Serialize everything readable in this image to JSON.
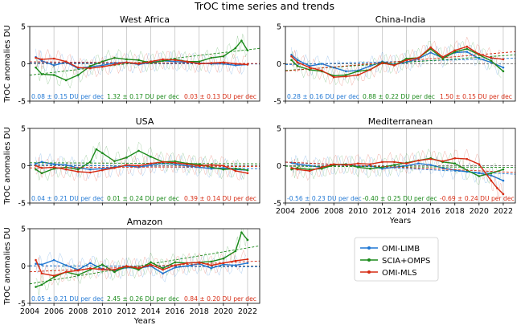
{
  "suptitle": "TrOC time series and trends",
  "ylabel": "TrOC anomalies DU",
  "xlabel": "Years",
  "colors": {
    "OMI-LIMB": "#1f77d4",
    "SCIA+OMPS": "#1a8a1a",
    "OMI-MLS": "#d62a12"
  },
  "legend": [
    "OMI-LIMB",
    "SCIA+OMPS",
    "OMI-MLS"
  ],
  "chart_data": [
    {
      "type": "line",
      "title": "West Africa",
      "xlim": [
        2004,
        2023
      ],
      "ylim": [
        -5,
        5
      ],
      "xticks": [
        "2004",
        "2006",
        "2008",
        "2010",
        "2012",
        "2014",
        "2016",
        "2018",
        "2020",
        "2022"
      ],
      "yticks": [
        "-5",
        "0",
        "5"
      ],
      "show_xticks": false,
      "trends": [
        {
          "series": "OMI-LIMB",
          "label": "0.08 ± 0.15 DU per dec"
        },
        {
          "series": "SCIA+OMPS",
          "label": "1.32 ± 0.17 DU per dec"
        },
        {
          "series": "OMI-MLS",
          "label": "0.03 ± 0.13 DU per dec"
        }
      ],
      "series": [
        {
          "name": "OMI-LIMB",
          "x": [
            2004.5,
            2005,
            2006,
            2007,
            2008,
            2009,
            2010,
            2011,
            2012,
            2013,
            2014,
            2015,
            2016,
            2017,
            2018,
            2019,
            2020,
            2021,
            2022
          ],
          "y": [
            0.9,
            0.4,
            -0.2,
            0.2,
            -0.6,
            -0.4,
            -0.2,
            0.1,
            0.2,
            -0.1,
            0.2,
            0.4,
            0.3,
            0.2,
            0.1,
            0.0,
            0.0,
            -0.2,
            -0.1
          ]
        },
        {
          "name": "SCIA+OMPS",
          "x": [
            2004.5,
            2005,
            2006,
            2007,
            2008,
            2009,
            2010,
            2011,
            2012,
            2013,
            2014,
            2015,
            2016,
            2017,
            2018,
            2019,
            2020,
            2021,
            2021.5,
            2022
          ],
          "y": [
            -0.5,
            -1.4,
            -1.5,
            -2.2,
            -1.5,
            -0.3,
            0.3,
            0.8,
            0.6,
            0.5,
            0.1,
            0.4,
            0.6,
            0.3,
            0.3,
            0.8,
            1.0,
            2.1,
            3.1,
            1.8
          ]
        },
        {
          "name": "OMI-MLS",
          "x": [
            2004.5,
            2005,
            2006,
            2007,
            2008,
            2009,
            2010,
            2011,
            2012,
            2013,
            2014,
            2015,
            2016,
            2017,
            2018,
            2019,
            2020,
            2021,
            2022
          ],
          "y": [
            0.8,
            0.6,
            0.7,
            0.3,
            -0.5,
            -0.6,
            -0.4,
            -0.1,
            0.2,
            0.0,
            0.3,
            0.6,
            0.5,
            0.3,
            0.0,
            0.1,
            0.2,
            0.0,
            -0.1
          ]
        }
      ]
    },
    {
      "type": "line",
      "title": "China-India",
      "xlim": [
        2004,
        2023
      ],
      "ylim": [
        -5,
        5
      ],
      "xticks": [
        "2004",
        "2006",
        "2008",
        "2010",
        "2012",
        "2014",
        "2016",
        "2018",
        "2020",
        "2022"
      ],
      "yticks": [
        "-5",
        "0",
        "5"
      ],
      "show_xticks": false,
      "trends": [
        {
          "series": "OMI-LIMB",
          "label": "0.28 ± 0.16 DU per dec"
        },
        {
          "series": "SCIA+OMPS",
          "label": "0.88 ± 0.22 DU per dec"
        },
        {
          "series": "OMI-MLS",
          "label": "1.50 ± 0.15 DU per dec"
        }
      ],
      "series": [
        {
          "name": "OMI-LIMB",
          "x": [
            2004.5,
            2005,
            2006,
            2007,
            2008,
            2009,
            2010,
            2011,
            2012,
            2013,
            2014,
            2015,
            2016,
            2017,
            2018,
            2019,
            2020,
            2021,
            2022
          ],
          "y": [
            1.2,
            0.5,
            -0.3,
            0.0,
            -0.5,
            -1.0,
            -0.9,
            -0.3,
            0.3,
            -0.1,
            0.2,
            0.7,
            1.5,
            0.8,
            1.5,
            1.6,
            0.7,
            0.2,
            -0.5
          ]
        },
        {
          "name": "SCIA+OMPS",
          "x": [
            2004.5,
            2005,
            2006,
            2007,
            2008,
            2009,
            2010,
            2011,
            2012,
            2013,
            2014,
            2015,
            2016,
            2017,
            2018,
            2019,
            2020,
            2021,
            2022
          ],
          "y": [
            0.5,
            -0.3,
            -0.8,
            -1.0,
            -1.6,
            -1.5,
            -1.0,
            -0.8,
            0.2,
            -0.2,
            0.7,
            0.8,
            2.0,
            0.7,
            1.6,
            2.0,
            1.2,
            0.4,
            -1.0
          ]
        },
        {
          "name": "OMI-MLS",
          "x": [
            2004.5,
            2005,
            2006,
            2007,
            2008,
            2009,
            2010,
            2011,
            2012,
            2013,
            2014,
            2015,
            2016,
            2017,
            2018,
            2019,
            2020,
            2021,
            2022
          ],
          "y": [
            1.0,
            0.2,
            -0.5,
            -0.9,
            -1.8,
            -1.7,
            -1.5,
            -0.8,
            0.1,
            -0.2,
            0.5,
            0.8,
            2.2,
            0.9,
            1.8,
            2.3,
            1.3,
            0.8,
            0.6
          ]
        }
      ]
    },
    {
      "type": "line",
      "title": "USA",
      "xlim": [
        2004,
        2023
      ],
      "ylim": [
        -5,
        5
      ],
      "xticks": [
        "2004",
        "2006",
        "2008",
        "2010",
        "2012",
        "2014",
        "2016",
        "2018",
        "2020",
        "2022"
      ],
      "yticks": [
        "-5",
        "0",
        "5"
      ],
      "show_xticks": false,
      "trends": [
        {
          "series": "OMI-LIMB",
          "label": "0.04 ± 0.21 DU per dec"
        },
        {
          "series": "SCIA+OMPS",
          "label": "0.01 ± 0.24 DU per dec"
        },
        {
          "series": "OMI-MLS",
          "label": "0.39 ± 0.14 DU per dec"
        }
      ],
      "series": [
        {
          "name": "OMI-LIMB",
          "x": [
            2004.5,
            2005,
            2006,
            2007,
            2008,
            2009,
            2010,
            2011,
            2012,
            2013,
            2014,
            2015,
            2016,
            2017,
            2018,
            2019,
            2020,
            2021,
            2022
          ],
          "y": [
            0.3,
            0.5,
            0.2,
            0.1,
            -0.3,
            -0.5,
            -0.4,
            -0.2,
            0.0,
            -0.2,
            0.1,
            0.3,
            0.2,
            0.0,
            -0.2,
            -0.4,
            -0.3,
            -0.5,
            -0.6
          ]
        },
        {
          "name": "SCIA+OMPS",
          "x": [
            2004.5,
            2005,
            2006,
            2007,
            2008,
            2009,
            2009.5,
            2010,
            2011,
            2012,
            2013,
            2014,
            2015,
            2016,
            2017,
            2018,
            2019,
            2020,
            2021,
            2022
          ],
          "y": [
            -0.5,
            -1.0,
            -0.4,
            -0.2,
            -0.5,
            0.5,
            2.2,
            1.7,
            0.6,
            1.1,
            2.0,
            1.2,
            0.5,
            0.6,
            0.3,
            0.2,
            -0.2,
            -0.5,
            -0.4,
            -0.6
          ]
        },
        {
          "name": "OMI-MLS",
          "x": [
            2004.5,
            2005,
            2006,
            2007,
            2008,
            2009,
            2010,
            2011,
            2012,
            2013,
            2014,
            2015,
            2016,
            2017,
            2018,
            2019,
            2020,
            2021,
            2022
          ],
          "y": [
            0.0,
            -0.3,
            -0.2,
            -0.5,
            -0.8,
            -0.9,
            -0.6,
            -0.3,
            0.1,
            0.0,
            0.3,
            0.5,
            0.4,
            0.2,
            0.0,
            0.1,
            0.0,
            -0.7,
            -1.0
          ]
        }
      ]
    },
    {
      "type": "line",
      "title": "Mediterranean",
      "xlim": [
        2004,
        2023
      ],
      "ylim": [
        -5,
        5
      ],
      "xticks": [
        "2004",
        "2006",
        "2008",
        "2010",
        "2012",
        "2014",
        "2016",
        "2018",
        "2020",
        "2022"
      ],
      "yticks": [
        "-5",
        "0",
        "5"
      ],
      "show_xticks": true,
      "trends": [
        {
          "series": "OMI-LIMB",
          "label": "-0.56 ± 0.23 DU per dec"
        },
        {
          "series": "SCIA+OMPS",
          "label": "-0.40 ± 0.25 DU per dec"
        },
        {
          "series": "OMI-MLS",
          "label": "-0.69 ± 0.24 DU per dec"
        }
      ],
      "series": [
        {
          "name": "OMI-LIMB",
          "x": [
            2004.5,
            2005,
            2006,
            2007,
            2008,
            2009,
            2010,
            2011,
            2012,
            2013,
            2014,
            2015,
            2016,
            2017,
            2018,
            2019,
            2020,
            2021,
            2022
          ],
          "y": [
            0.4,
            0.2,
            0.0,
            -0.2,
            0.1,
            0.2,
            -0.1,
            0.0,
            -0.4,
            -0.2,
            0.0,
            0.3,
            0.1,
            -0.3,
            -0.6,
            -0.8,
            -1.0,
            -1.3,
            -2.0
          ]
        },
        {
          "name": "SCIA+OMPS",
          "x": [
            2004.5,
            2005,
            2006,
            2007,
            2008,
            2009,
            2010,
            2011,
            2012,
            2013,
            2014,
            2015,
            2016,
            2017,
            2018,
            2019,
            2020,
            2021,
            2022
          ],
          "y": [
            -0.5,
            -0.3,
            -0.5,
            -0.4,
            0.1,
            0.2,
            -0.2,
            -0.4,
            -0.2,
            0.1,
            0.4,
            0.7,
            1.0,
            0.5,
            0.3,
            -0.6,
            -1.4,
            -1.0,
            -0.5
          ]
        },
        {
          "name": "OMI-MLS",
          "x": [
            2004.5,
            2005,
            2006,
            2007,
            2008,
            2009,
            2010,
            2011,
            2012,
            2013,
            2014,
            2015,
            2016,
            2017,
            2018,
            2019,
            2020,
            2021,
            2021.5,
            2022
          ],
          "y": [
            -0.3,
            -0.5,
            -0.7,
            -0.2,
            0.2,
            0.1,
            0.3,
            0.2,
            0.5,
            0.5,
            0.3,
            0.7,
            0.9,
            0.6,
            1.0,
            0.9,
            0.2,
            -2.0,
            -3.0,
            -3.8
          ]
        }
      ]
    },
    {
      "type": "line",
      "title": "Amazon",
      "xlim": [
        2004,
        2023
      ],
      "ylim": [
        -5,
        5
      ],
      "xticks": [
        "2004",
        "2006",
        "2008",
        "2010",
        "2012",
        "2014",
        "2016",
        "2018",
        "2020",
        "2022"
      ],
      "yticks": [
        "-5",
        "0",
        "5"
      ],
      "show_xticks": true,
      "trends": [
        {
          "series": "OMI-LIMB",
          "label": "0.05 ± 0.21 DU per dec"
        },
        {
          "series": "SCIA+OMPS",
          "label": "2.45 ± 0.26 DU per dec"
        },
        {
          "series": "OMI-MLS",
          "label": "0.84 ± 0.20 DU per dec"
        }
      ],
      "series": [
        {
          "name": "OMI-LIMB",
          "x": [
            2004.5,
            2005,
            2006,
            2007,
            2008,
            2009,
            2010,
            2011,
            2012,
            2013,
            2014,
            2015,
            2016,
            2017,
            2018,
            2019,
            2020,
            2021,
            2022
          ],
          "y": [
            0.3,
            0.2,
            0.8,
            0.1,
            -0.5,
            0.4,
            -0.4,
            -0.6,
            -0.2,
            -0.3,
            0.0,
            -1.0,
            -0.2,
            0.0,
            0.3,
            -0.3,
            0.2,
            0.1,
            0.4
          ]
        },
        {
          "name": "SCIA+OMPS",
          "x": [
            2004.5,
            2005,
            2006,
            2007,
            2008,
            2009,
            2010,
            2011,
            2012,
            2013,
            2014,
            2015,
            2016,
            2017,
            2018,
            2019,
            2020,
            2021,
            2021.5,
            2022
          ],
          "y": [
            -2.8,
            -2.5,
            -1.5,
            -0.8,
            -1.2,
            -0.5,
            0.2,
            -0.8,
            0.0,
            -0.5,
            0.5,
            -0.3,
            0.5,
            0.4,
            0.5,
            0.6,
            1.0,
            2.0,
            4.5,
            3.5
          ]
        },
        {
          "name": "OMI-MLS",
          "x": [
            2004.5,
            2005,
            2006,
            2007,
            2008,
            2009,
            2010,
            2011,
            2012,
            2013,
            2014,
            2015,
            2016,
            2017,
            2018,
            2019,
            2020,
            2021,
            2022
          ],
          "y": [
            0.8,
            -1.0,
            -1.3,
            -0.8,
            -0.6,
            -0.3,
            -0.5,
            -0.5,
            0.0,
            -0.3,
            0.2,
            -0.5,
            0.1,
            0.4,
            0.5,
            0.1,
            0.4,
            0.7,
            0.9
          ]
        }
      ]
    }
  ]
}
